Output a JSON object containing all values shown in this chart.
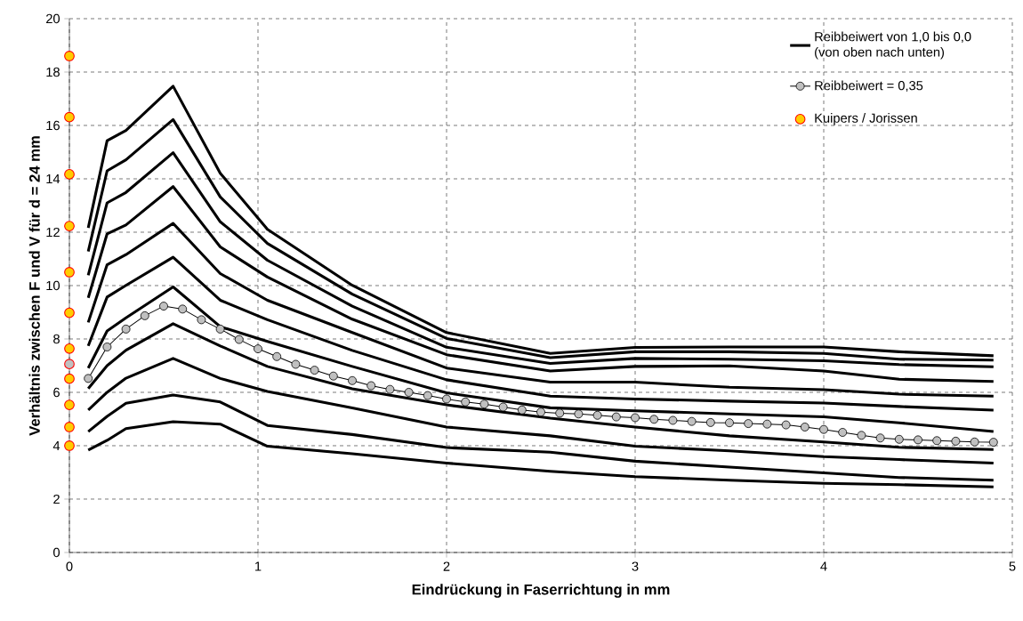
{
  "chart_data": {
    "type": "line",
    "xlabel": "Eindrückung in Faserrichtung in mm",
    "ylabel": "Verhältnis zwischen F und V für d = 24 mm",
    "x": [
      0.1,
      0.2,
      0.3,
      0.55,
      0.8,
      1.05,
      1.5,
      2.0,
      2.55,
      3.0,
      3.5,
      4.0,
      4.4,
      4.9
    ],
    "xlim": [
      0,
      5
    ],
    "xticks": [
      0,
      1,
      2,
      3,
      4,
      5
    ],
    "ylim": [
      0,
      20
    ],
    "yticks": [
      0,
      2,
      4,
      6,
      8,
      10,
      12,
      14,
      16,
      18,
      20
    ],
    "grid": true,
    "legend": "top right",
    "series": [
      {
        "name": "Reibbeiwert von 1,0 bis 0,0 (von oben nach unten)",
        "color": "#000000",
        "values": [
          12.16,
          15.43,
          15.81,
          17.47,
          14.21,
          12.11,
          10.01,
          8.24,
          7.46,
          7.68,
          7.7,
          7.7,
          7.52,
          7.37
        ]
      },
      {
        "color": "#000000",
        "values": [
          11.28,
          14.3,
          14.71,
          16.22,
          13.32,
          11.58,
          9.68,
          8.02,
          7.3,
          7.52,
          7.52,
          7.46,
          7.24,
          7.21
        ]
      },
      {
        "color": "#000000",
        "values": [
          10.39,
          13.1,
          13.49,
          14.98,
          12.39,
          10.95,
          9.23,
          7.69,
          7.08,
          7.27,
          7.24,
          7.18,
          7.04,
          6.96
        ]
      },
      {
        "color": "#000000",
        "values": [
          9.54,
          11.94,
          12.27,
          13.71,
          11.45,
          10.32,
          8.74,
          7.41,
          6.8,
          6.97,
          6.99,
          6.8,
          6.49,
          6.41
        ]
      },
      {
        "color": "#000000",
        "values": [
          8.62,
          10.78,
          11.16,
          12.33,
          10.45,
          9.45,
          8.24,
          6.91,
          6.38,
          6.38,
          6.19,
          6.1,
          5.93,
          5.86
        ]
      },
      {
        "color": "#000000",
        "values": [
          7.74,
          9.57,
          10.01,
          11.06,
          9.45,
          8.72,
          7.57,
          6.47,
          5.86,
          5.75,
          5.67,
          5.6,
          5.47,
          5.33
        ]
      },
      {
        "color": "#000000",
        "values": [
          6.91,
          8.3,
          8.79,
          9.95,
          8.46,
          7.91,
          6.97,
          5.98,
          5.42,
          5.31,
          5.19,
          5.08,
          4.86,
          4.53
        ]
      },
      {
        "color": "#000000",
        "values": [
          6.14,
          7.0,
          7.58,
          8.57,
          7.74,
          6.97,
          6.13,
          5.53,
          5.03,
          4.7,
          4.37,
          4.14,
          3.94,
          3.86
        ]
      },
      {
        "color": "#000000",
        "values": [
          5.34,
          6.0,
          6.53,
          7.27,
          6.52,
          6.03,
          5.42,
          4.7,
          4.37,
          3.98,
          3.81,
          3.59,
          3.48,
          3.35
        ]
      },
      {
        "color": "#000000",
        "values": [
          4.53,
          5.1,
          5.59,
          5.9,
          5.64,
          4.76,
          4.42,
          3.93,
          3.76,
          3.42,
          3.2,
          2.98,
          2.81,
          2.71
        ]
      },
      {
        "color": "#000000",
        "values": [
          3.84,
          4.2,
          4.64,
          4.9,
          4.81,
          3.98,
          3.7,
          3.35,
          3.04,
          2.84,
          2.71,
          2.59,
          2.54,
          2.46
        ]
      },
      {
        "name": "Reibbeiwert = 0,35",
        "color": "#c0c0c0",
        "marker": "circle",
        "x": [
          0.1,
          0.2,
          0.3,
          0.4,
          0.5,
          0.6,
          0.7,
          0.8,
          0.9,
          1.0,
          1.1,
          1.2,
          1.3,
          1.4,
          1.5,
          1.6,
          1.7,
          1.8,
          1.9,
          2.0,
          2.1,
          2.2,
          2.3,
          2.4,
          2.5,
          2.6,
          2.7,
          2.8,
          2.9,
          3.0,
          3.1,
          3.2,
          3.3,
          3.4,
          3.5,
          3.6,
          3.7,
          3.8,
          3.9,
          4.0,
          4.1,
          4.2,
          4.3,
          4.4,
          4.5,
          4.6,
          4.7,
          4.8,
          4.9
        ],
        "values": [
          6.52,
          7.7,
          8.37,
          8.87,
          9.23,
          9.12,
          8.72,
          8.37,
          7.98,
          7.63,
          7.34,
          7.05,
          6.83,
          6.61,
          6.44,
          6.25,
          6.11,
          6.0,
          5.88,
          5.75,
          5.64,
          5.56,
          5.45,
          5.34,
          5.26,
          5.22,
          5.19,
          5.14,
          5.08,
          5.05,
          4.99,
          4.95,
          4.91,
          4.87,
          4.86,
          4.83,
          4.81,
          4.78,
          4.7,
          4.61,
          4.5,
          4.39,
          4.29,
          4.24,
          4.22,
          4.19,
          4.17,
          4.14,
          4.13
        ]
      },
      {
        "type": "scatter",
        "color": "#c0c0c0",
        "marker": "circle",
        "x": [
          0
        ],
        "values": [
          7.06
        ]
      },
      {
        "name": "Kuipers / Jorissen",
        "type": "scatter",
        "color": "#ffcc00",
        "marker": "circle",
        "x": [
          0,
          0,
          0,
          0,
          0,
          0,
          0,
          0,
          0,
          0,
          0
        ],
        "values": [
          18.6,
          16.31,
          14.17,
          12.23,
          10.5,
          8.98,
          7.64,
          6.51,
          5.53,
          4.7,
          4.0
        ]
      }
    ]
  }
}
